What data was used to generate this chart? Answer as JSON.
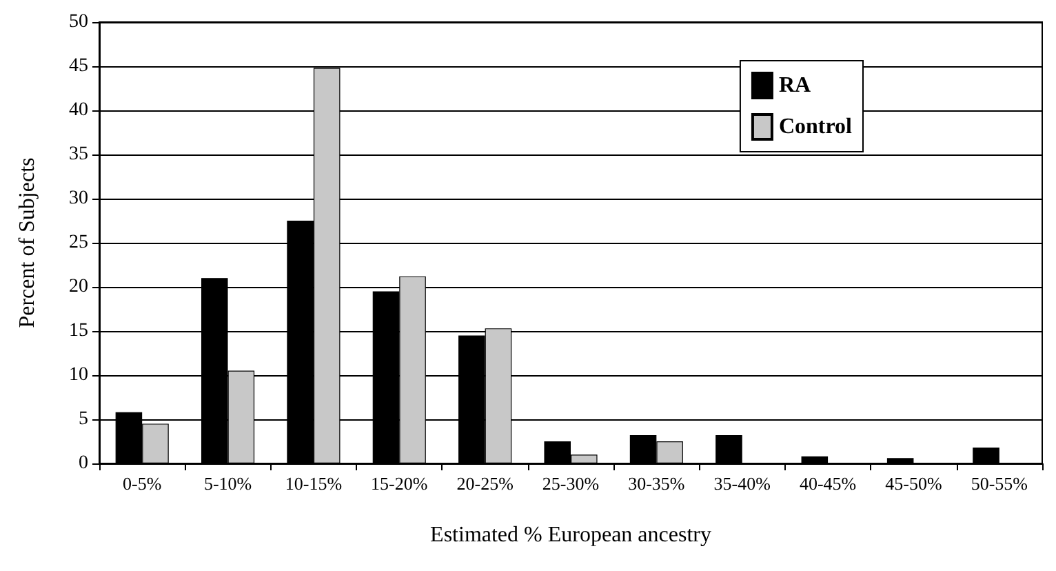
{
  "chart_data": {
    "type": "bar",
    "xlabel": "Estimated % European ancestry",
    "ylabel": "Percent of Subjects",
    "categories": [
      "0-5%",
      "5-10%",
      "10-15%",
      "15-20%",
      "20-25%",
      "25-30%",
      "30-35%",
      "35-40%",
      "40-45%",
      "45-50%",
      "50-55%"
    ],
    "series": [
      {
        "name": "RA",
        "color": "#000000",
        "values": [
          5.8,
          21,
          27.5,
          19.5,
          14.5,
          2.5,
          3.2,
          3.2,
          0.8,
          0.6,
          1.8
        ]
      },
      {
        "name": "Control",
        "color": "#c8c8c8",
        "values": [
          4.5,
          10.5,
          44.8,
          21.2,
          15.3,
          1.0,
          2.5,
          null,
          null,
          null,
          null
        ]
      }
    ],
    "ylim": [
      0,
      50
    ],
    "yticks": [
      0,
      5,
      10,
      15,
      20,
      25,
      30,
      35,
      40,
      45,
      50
    ],
    "grid": "y",
    "legend": "top right"
  }
}
